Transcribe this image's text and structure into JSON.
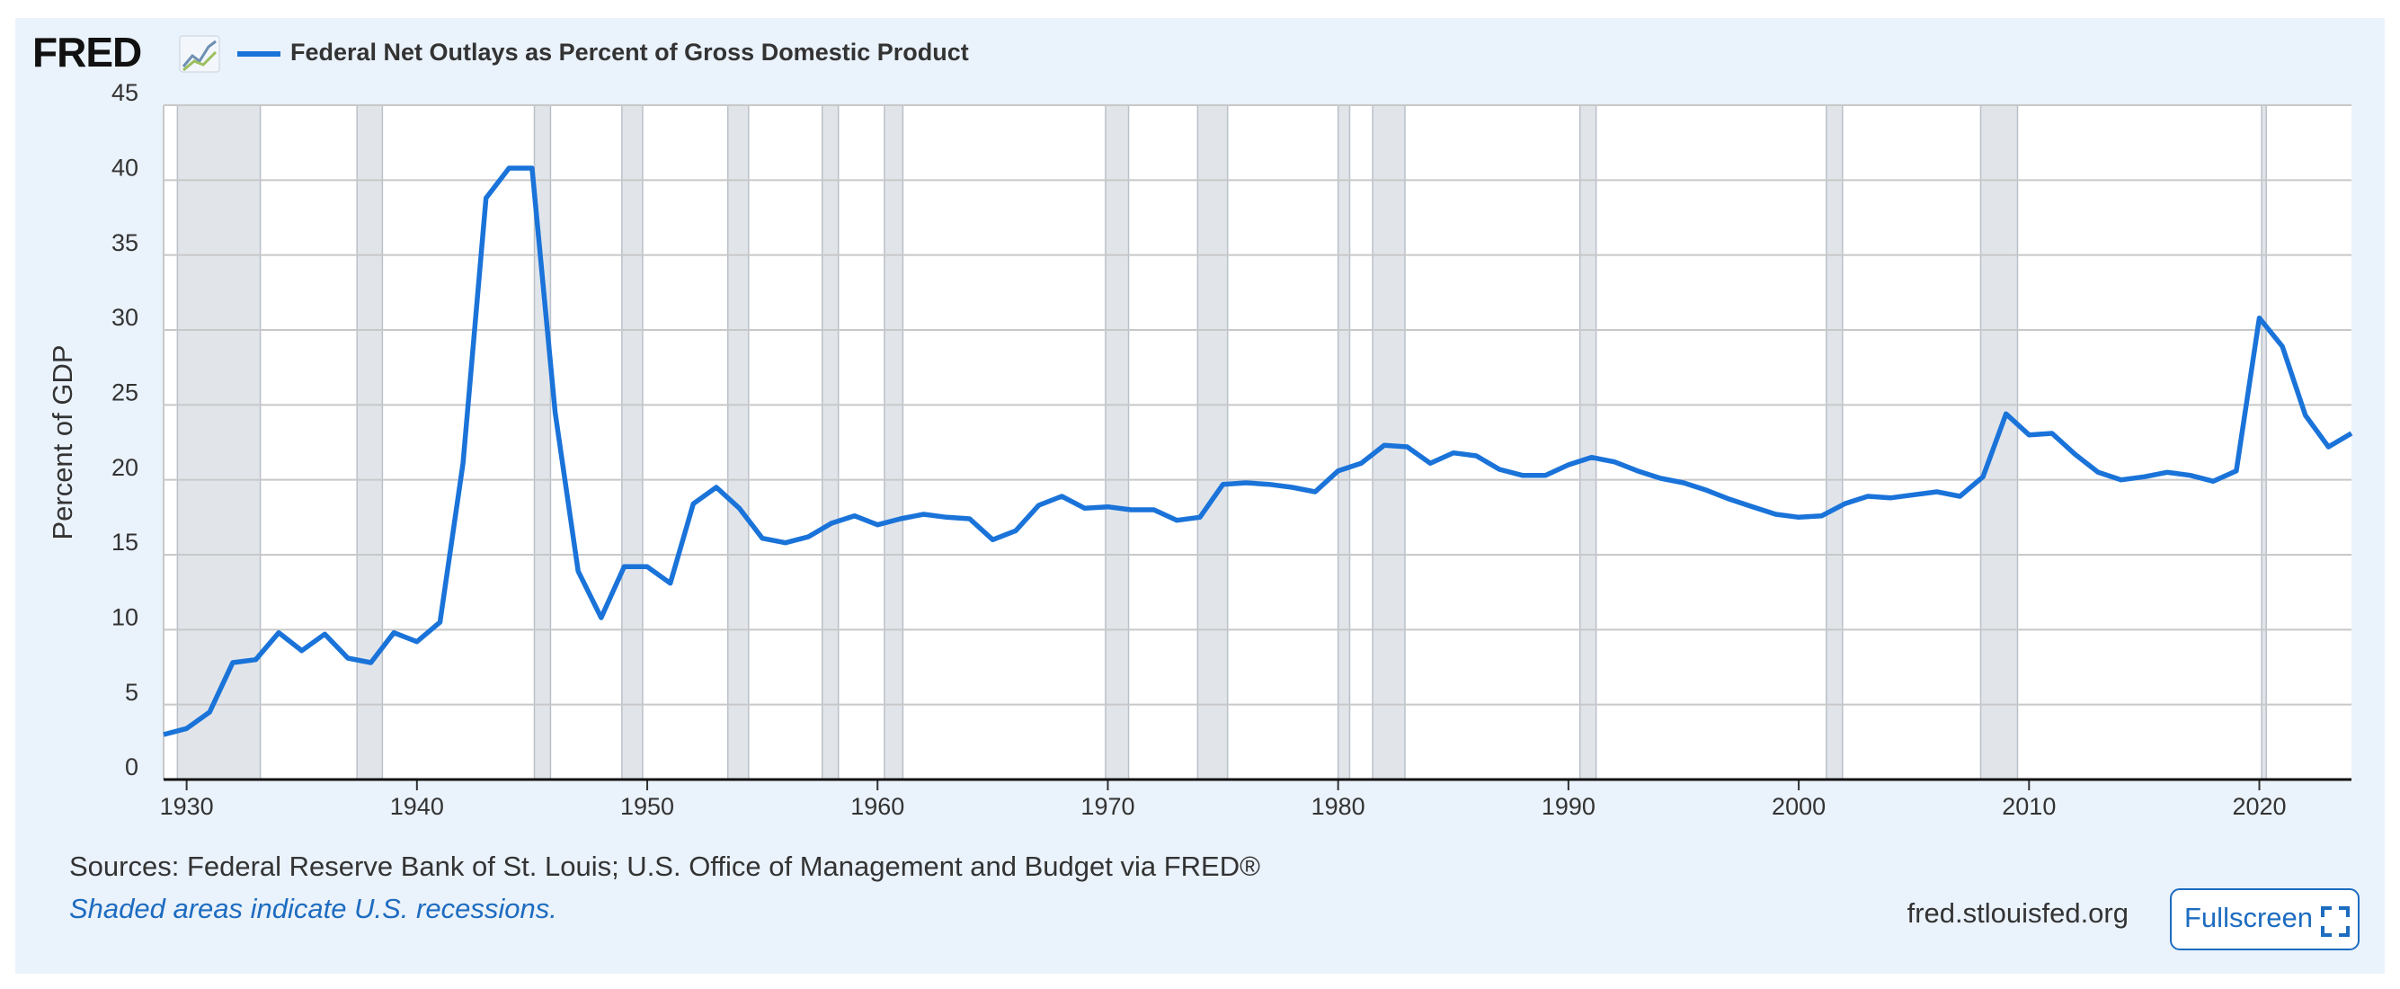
{
  "chart_data": {
    "type": "line",
    "logo": "FRED",
    "ylabel": "Percent of GDP",
    "sources": "Sources: Federal Reserve Bank of St. Louis; U.S. Office of Management and Budget via FRED®",
    "note": "Shaded areas indicate U.S. recessions.",
    "site": "fred.stlouisfed.org",
    "button": "Fullscreen",
    "x": [
      1929,
      1930,
      1931,
      1932,
      1933,
      1934,
      1935,
      1936,
      1937,
      1938,
      1939,
      1940,
      1941,
      1942,
      1943,
      1944,
      1945,
      1946,
      1947,
      1948,
      1949,
      1950,
      1951,
      1952,
      1953,
      1954,
      1955,
      1956,
      1957,
      1958,
      1959,
      1960,
      1961,
      1962,
      1963,
      1964,
      1965,
      1966,
      1967,
      1968,
      1969,
      1970,
      1971,
      1972,
      1973,
      1974,
      1975,
      1976,
      1977,
      1978,
      1979,
      1980,
      1981,
      1982,
      1983,
      1984,
      1985,
      1986,
      1987,
      1988,
      1989,
      1990,
      1991,
      1992,
      1993,
      1994,
      1995,
      1996,
      1997,
      1998,
      1999,
      2000,
      2001,
      2002,
      2003,
      2004,
      2005,
      2006,
      2007,
      2008,
      2009,
      2010,
      2011,
      2012,
      2013,
      2014,
      2015,
      2016,
      2017,
      2018,
      2019,
      2020,
      2021,
      2022,
      2023,
      2024
    ],
    "series": [
      {
        "name": "Federal Net Outlays as Percent of Gross Domestic Product",
        "color": "#1a73d9",
        "values": [
          3.0,
          3.4,
          4.5,
          7.8,
          8.0,
          9.8,
          8.6,
          9.7,
          8.1,
          7.8,
          9.8,
          9.2,
          10.5,
          21.1,
          38.8,
          40.8,
          40.8,
          24.5,
          13.9,
          10.8,
          14.2,
          14.2,
          13.1,
          18.4,
          19.5,
          18.1,
          16.1,
          15.8,
          16.2,
          17.1,
          17.6,
          17.0,
          17.4,
          17.7,
          17.5,
          17.4,
          16.0,
          16.6,
          18.3,
          18.9,
          18.1,
          18.2,
          18.0,
          18.0,
          17.3,
          17.5,
          19.7,
          19.8,
          19.7,
          19.5,
          19.2,
          20.6,
          21.1,
          22.3,
          22.2,
          21.1,
          21.8,
          21.6,
          20.7,
          20.3,
          20.3,
          21.0,
          21.5,
          21.2,
          20.6,
          20.1,
          19.8,
          19.3,
          18.7,
          18.2,
          17.7,
          17.5,
          17.6,
          18.4,
          18.9,
          18.8,
          19.0,
          19.2,
          18.9,
          20.2,
          24.4,
          23.0,
          23.1,
          21.7,
          20.5,
          20.0,
          20.2,
          20.5,
          20.3,
          19.9,
          20.6,
          30.8,
          28.9,
          24.3,
          22.2,
          23.1
        ]
      }
    ],
    "recessions": [
      [
        1929.6,
        1933.2
      ],
      [
        1937.4,
        1938.5
      ],
      [
        1945.1,
        1945.8
      ],
      [
        1948.9,
        1949.8
      ],
      [
        1953.5,
        1954.4
      ],
      [
        1957.6,
        1958.3
      ],
      [
        1960.3,
        1961.1
      ],
      [
        1969.9,
        1970.9
      ],
      [
        1973.9,
        1975.2
      ],
      [
        1980.0,
        1980.5
      ],
      [
        1981.5,
        1982.9
      ],
      [
        1990.5,
        1991.2
      ],
      [
        2001.2,
        2001.9
      ],
      [
        2007.9,
        2009.5
      ],
      [
        2020.1,
        2020.3
      ]
    ],
    "recession_color": "#e1e5ea",
    "xlim": [
      1929,
      2024
    ],
    "xticks": [
      1930,
      1940,
      1950,
      1960,
      1970,
      1980,
      1990,
      2000,
      2010,
      2020
    ],
    "ylim": [
      0,
      45
    ],
    "yticks": [
      0,
      5,
      10,
      15,
      20,
      25,
      30,
      35,
      40,
      45
    ],
    "grid": true
  }
}
